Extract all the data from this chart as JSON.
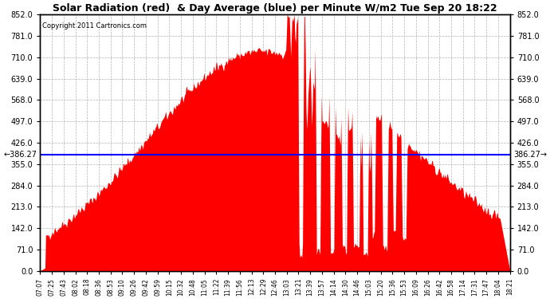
{
  "title": "Solar Radiation (red)  & Day Average (blue) per Minute W/m2 Tue Sep 20 18:22",
  "copyright": "Copyright 2011 Cartronics.com",
  "day_average": 386.27,
  "ymin": 0.0,
  "ymax": 852.0,
  "ytick_step": 71.0,
  "bar_color": "#ff0000",
  "avg_line_color": "#0000ff",
  "bg_color": "#ffffff",
  "grid_color": "#aaaaaa",
  "left_label": "←386.27",
  "right_label": "386.27→",
  "x_labels": [
    "07:07",
    "07:25",
    "07:43",
    "08:02",
    "08:18",
    "08:36",
    "08:53",
    "09:10",
    "09:26",
    "09:42",
    "09:59",
    "10:15",
    "10:32",
    "10:48",
    "11:05",
    "11:22",
    "11:39",
    "11:56",
    "12:13",
    "12:29",
    "12:46",
    "13:03",
    "13:21",
    "13:39",
    "13:57",
    "14:14",
    "14:30",
    "14:46",
    "15:03",
    "15:20",
    "15:36",
    "15:53",
    "16:09",
    "16:26",
    "16:42",
    "16:58",
    "17:14",
    "17:31",
    "17:47",
    "18:04",
    "18:21"
  ],
  "figsize": [
    6.9,
    3.75
  ],
  "dpi": 100
}
